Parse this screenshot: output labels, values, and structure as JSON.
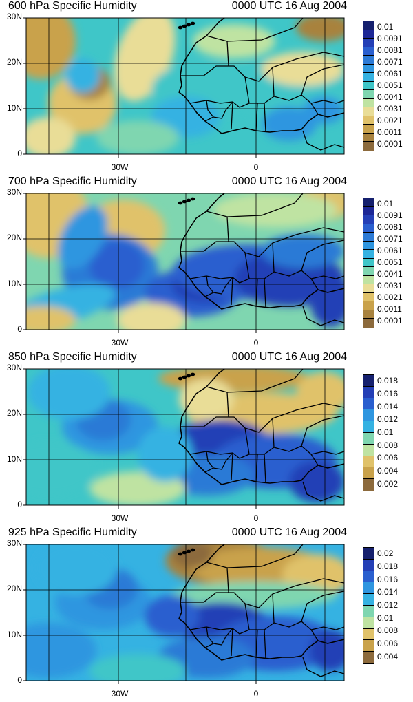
{
  "palette": [
    "#8c6a3c",
    "#a8823e",
    "#c9a24b",
    "#e0c26a",
    "#e9dd97",
    "#bfe3a2",
    "#7fd6b0",
    "#3fc6c8",
    "#35b2e2",
    "#2f96e0",
    "#2c7ad6",
    "#2a5fcf",
    "#243fb6",
    "#1d2796",
    "#15206e"
  ],
  "panels": [
    {
      "title": "600 hPa Specific Humidity",
      "time": "0000 UTC 16 Aug 2004",
      "y_ticks": [
        "30N",
        "20N",
        "10N",
        "0"
      ],
      "x_ticks": [
        "30W",
        "0"
      ],
      "colorbar_labels": [
        "0.01",
        "0.0091",
        "0.0081",
        "0.0071",
        "0.0061",
        "0.0051",
        "0.0041",
        "0.0031",
        "0.0021",
        "0.0011",
        "0.0001"
      ],
      "colorbar_segments": 15
    },
    {
      "title": "700 hPa Specific Humidity",
      "time": "0000 UTC 16 Aug 2004",
      "y_ticks": [
        "30N",
        "20N",
        "10N",
        "0"
      ],
      "x_ticks": [
        "30W",
        "0"
      ],
      "colorbar_labels": [
        "0.01",
        "0.0091",
        "0.0081",
        "0.0071",
        "0.0061",
        "0.0051",
        "0.0041",
        "0.0031",
        "0.0021",
        "0.0011",
        "0.0001"
      ],
      "colorbar_segments": 15
    },
    {
      "title": "850 hPa Specific Humidity",
      "time": "0000 UTC 16 Aug 2004",
      "y_ticks": [
        "30N",
        "20N",
        "10N",
        "0"
      ],
      "x_ticks": [
        "30W",
        "0"
      ],
      "colorbar_labels": [
        "0.018",
        "0.016",
        "0.014",
        "0.012",
        "0.01",
        "0.008",
        "0.006",
        "0.004",
        "0.002"
      ],
      "colorbar_segments": 10
    },
    {
      "title": "925 hPa Specific Humidity",
      "time": "0000 UTC 16 Aug 2004",
      "y_ticks": [
        "30N",
        "20N",
        "10N",
        "0"
      ],
      "x_ticks": [
        "30W",
        "0"
      ],
      "colorbar_labels": [
        "0.02",
        "0.018",
        "0.016",
        "0.014",
        "0.012",
        "0.01",
        "0.008",
        "0.006",
        "0.004"
      ],
      "colorbar_segments": 10
    }
  ]
}
